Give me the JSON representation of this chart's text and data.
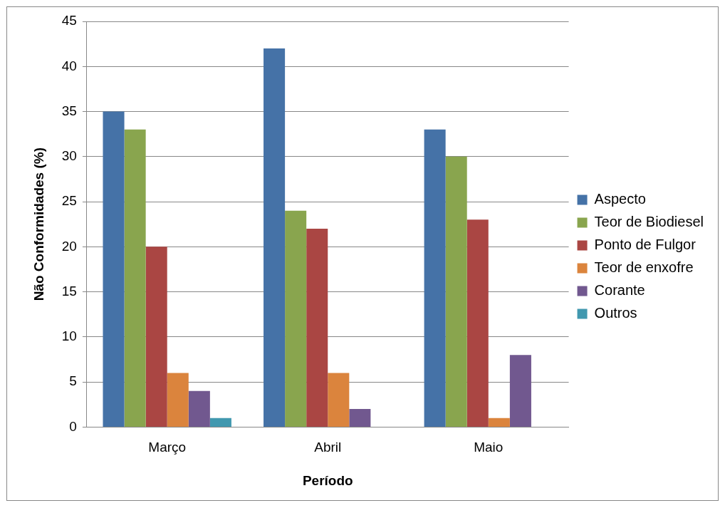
{
  "chart_data": {
    "type": "bar",
    "xlabel": "Período",
    "ylabel": "Não Conformidades (%)",
    "categories": [
      "Março",
      "Abril",
      "Maio"
    ],
    "series": [
      {
        "name": "Aspecto",
        "color": "#4572a7",
        "values": [
          35,
          42,
          33
        ]
      },
      {
        "name": "Teor de Biodiesel",
        "color": "#89a54e",
        "values": [
          33,
          24,
          30
        ]
      },
      {
        "name": "Ponto de Fulgor",
        "color": "#aa4643",
        "values": [
          20,
          22,
          23
        ]
      },
      {
        "name": "Teor de enxofre",
        "color": "#db843d",
        "values": [
          6,
          6,
          1
        ]
      },
      {
        "name": "Corante",
        "color": "#71588f",
        "values": [
          4,
          2,
          8
        ]
      },
      {
        "name": "Outros",
        "color": "#4198af",
        "values": [
          1,
          null,
          null
        ]
      }
    ],
    "ylim": [
      0,
      45
    ],
    "yticks": [
      0,
      5,
      10,
      15,
      20,
      25,
      30,
      35,
      40,
      45
    ],
    "grid": "y",
    "legend": "right"
  }
}
